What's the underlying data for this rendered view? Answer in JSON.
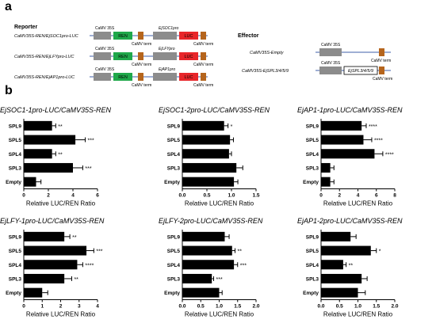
{
  "panel_a": {
    "letter": "a",
    "reporter_title": "Reporter",
    "effector_title": "Effector",
    "reporters": [
      {
        "label": "CaMV35S-REN/EjSOC1pro-LUC",
        "promoter1": "CaMV 35S",
        "promoter2": "EjSOC1pro",
        "ren": "REN",
        "luc": "LUC",
        "term": "CaMV term"
      },
      {
        "label": "CaMV35S-REN/EjLFYpro-LUC",
        "promoter1": "CaMV 35S",
        "promoter2": "EjLFYpro",
        "ren": "REN",
        "luc": "LUC",
        "term": "CaMV term"
      },
      {
        "label": "CaMV35S-REN/EjAP1pro-LUC",
        "promoter1": "CaMV 35S",
        "promoter2": "EjAP1pro",
        "ren": "REN",
        "luc": "LUC",
        "term": "CaMV term"
      }
    ],
    "effectors": [
      {
        "label": "CaMV35S-Empty",
        "promoter": "CaMV 35S",
        "term": "CaMV term",
        "gene": ""
      },
      {
        "label": "CaMV35S-EjSPL3/4/5/9",
        "promoter": "CaMV 35S",
        "term": "CaMV term",
        "gene": "EjSPL3/4/5/9"
      }
    ],
    "colors": {
      "promoter": "#8c8c8c",
      "ren": "#1fa84a",
      "luc": "#e8262a",
      "term": "#b5651d",
      "line": "#3f5fa8"
    }
  },
  "panel_b_letter": "b",
  "chart_data": [
    {
      "type": "bar",
      "title": "EjSOC1-1pro-LUC/CaMV35S-REN",
      "xlabel": "Relative LUC/REN Ratio",
      "categories": [
        "SPL9",
        "SPL5",
        "SPL4",
        "SPL3",
        "Empty"
      ],
      "values": [
        2.3,
        4.2,
        2.3,
        4.0,
        1.0
      ],
      "errors": [
        0.3,
        0.8,
        0.3,
        0.8,
        0.4
      ],
      "significance": [
        "**",
        "***",
        "**",
        "***",
        ""
      ],
      "xlim": [
        0,
        6
      ],
      "ticks": [
        "0",
        "2",
        "4",
        "6"
      ]
    },
    {
      "type": "bar",
      "title": "EjSOC1-2pro-LUC/CaMV35S-REN",
      "xlabel": "Relative LUC/REN Ratio",
      "categories": [
        "SPL9",
        "SPL5",
        "SPL4",
        "SPL3",
        "Empty"
      ],
      "values": [
        0.85,
        0.97,
        0.95,
        1.1,
        1.05
      ],
      "errors": [
        0.08,
        0.07,
        0.05,
        0.13,
        0.08
      ],
      "significance": [
        "*",
        "",
        "",
        "",
        ""
      ],
      "xlim": [
        0,
        1.5
      ],
      "ticks": [
        "0.0",
        "0.5",
        "1.0",
        "1.5"
      ]
    },
    {
      "type": "bar",
      "title": "EjAP1-1pro-LUC/CaMV35S-REN",
      "xlabel": "Relative LUC/REN Ratio",
      "categories": [
        "SPL9",
        "SPL5",
        "SPL4",
        "SPL3",
        "Empty"
      ],
      "values": [
        4.4,
        4.6,
        5.8,
        1.0,
        1.0
      ],
      "errors": [
        0.5,
        0.9,
        0.9,
        0.4,
        0.4
      ],
      "significance": [
        "****",
        "****",
        "****",
        "",
        ""
      ],
      "xlim": [
        0,
        8
      ],
      "ticks": [
        "0",
        "2",
        "4",
        "6",
        "8"
      ]
    },
    {
      "type": "bar",
      "title": "EjLFY-1pro-LUC/CaMV35S-REN",
      "xlabel": "Relative LUC/REN Ratio",
      "categories": [
        "SPL9",
        "SPL5",
        "SPL4",
        "SPL3",
        "Empty"
      ],
      "values": [
        2.2,
        3.4,
        2.9,
        2.2,
        1.0
      ],
      "errors": [
        0.3,
        0.4,
        0.3,
        0.4,
        0.3
      ],
      "significance": [
        "**",
        "***",
        "****",
        "**",
        ""
      ],
      "xlim": [
        0,
        4
      ],
      "ticks": [
        "0",
        "1",
        "2",
        "3",
        "4"
      ]
    },
    {
      "type": "bar",
      "title": "EjLFY-2pro-LUC/CaMV35S-REN",
      "xlabel": "Relative LUC/REN Ratio",
      "categories": [
        "SPL9",
        "SPL5",
        "SPL4",
        "SPL3",
        "Empty"
      ],
      "values": [
        1.15,
        1.35,
        1.4,
        0.8,
        1.0
      ],
      "errors": [
        0.12,
        0.08,
        0.1,
        0.05,
        0.08
      ],
      "significance": [
        "",
        "**",
        "***",
        "***",
        ""
      ],
      "xlim": [
        0,
        2.0
      ],
      "ticks": [
        "0.0",
        "0.5",
        "1.0",
        "1.5",
        "2.0"
      ]
    },
    {
      "type": "bar",
      "title": "EjAP1-2pro-LUC/CaMV35S-REN",
      "xlabel": "Relative LUC/REN Ratio",
      "categories": [
        "SPL9",
        "SPL5",
        "SPL4",
        "SPL3",
        "Empty"
      ],
      "values": [
        0.8,
        1.35,
        0.6,
        1.1,
        1.0
      ],
      "errors": [
        0.15,
        0.15,
        0.08,
        0.15,
        0.2
      ],
      "significance": [
        "",
        "*",
        "**",
        "",
        ""
      ],
      "xlim": [
        0,
        2.0
      ],
      "ticks": [
        "0.0",
        "0.5",
        "1.0",
        "1.5",
        "2.0"
      ]
    }
  ]
}
